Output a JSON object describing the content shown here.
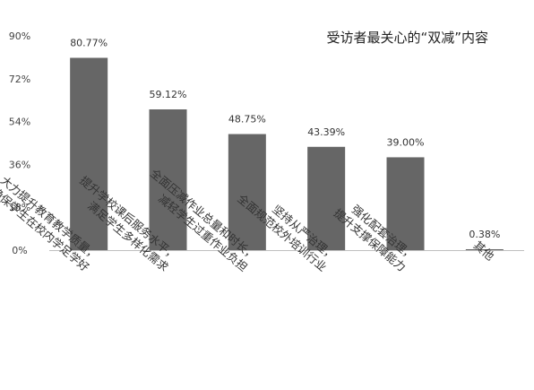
{
  "chart_data": {
    "type": "bar",
    "title": "受访者最关心的“双减”内容",
    "categories": [
      [
        "大力提升教育教学质量，",
        "确保学生在校内学足学好"
      ],
      [
        "提升学校课后服务水平，",
        "满足学生多样化需求"
      ],
      [
        "全面压减作业总量和时长，",
        "减轻学生过重作业负担"
      ],
      [
        "坚持从严治理，",
        "全面规范校外培训行业"
      ],
      [
        "强化配套治理，",
        "提升支撑保障能力"
      ],
      [
        "其他"
      ]
    ],
    "values": [
      80.77,
      59.12,
      48.75,
      43.39,
      39.0,
      0.38
    ],
    "data_labels": [
      "80.77%",
      "59.12%",
      "48.75%",
      "43.39%",
      "39.00%",
      "0.38%"
    ],
    "y_ticks": [
      "0%",
      "18%",
      "36%",
      "54%",
      "72%",
      "90%"
    ],
    "ylim": [
      0,
      90
    ],
    "grid": false,
    "bar_color": "#666666",
    "xlabel": "",
    "ylabel": ""
  }
}
